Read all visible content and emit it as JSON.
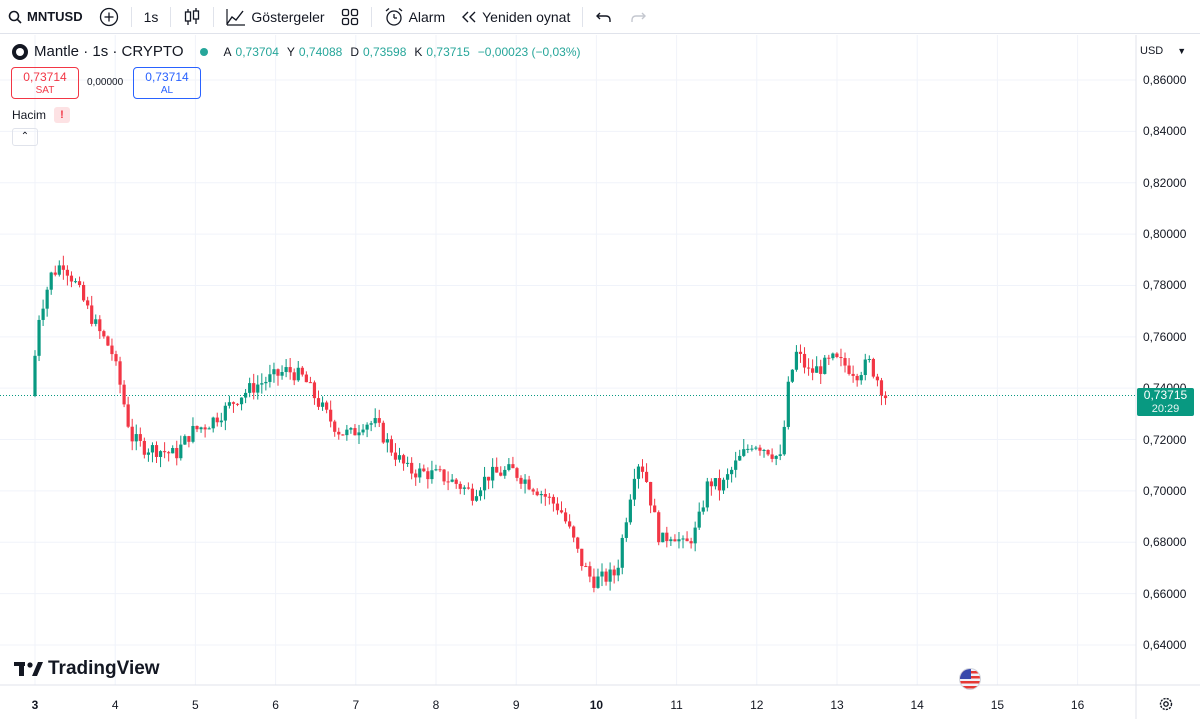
{
  "toolbar": {
    "symbol": "MNTUSD",
    "interval": "1s",
    "indicators": "Göstergeler",
    "alarm": "Alarm",
    "replay": "Yeniden oynat"
  },
  "legend": {
    "name": "Mantle · 1s · CRYPTO",
    "o_label": "A",
    "o": "0,73704",
    "h_label": "Y",
    "h": "0,74088",
    "l_label": "D",
    "l": "0,73598",
    "c_label": "K",
    "c": "0,73715",
    "change": "−0,00023 (−0,03%)"
  },
  "trade": {
    "sell_price": "0,73714",
    "sell_label": "SAT",
    "spread": "0,00000",
    "buy_price": "0,73714",
    "buy_label": "AL"
  },
  "volume": {
    "label": "Hacim",
    "warn": "!"
  },
  "currency": "USD",
  "last_price": {
    "value": "0,73715",
    "countdown": "20:29"
  },
  "brand": "TradingView",
  "colors": {
    "up": "#089981",
    "down": "#f23645",
    "grid": "#f0f3fa"
  },
  "chart_data": {
    "type": "candlestick",
    "x_ticks": [
      "3",
      "4",
      "5",
      "6",
      "7",
      "8",
      "9",
      "10",
      "11",
      "12",
      "13",
      "14",
      "15",
      "16"
    ],
    "y_ticks": [
      "0,86000",
      "0,84000",
      "0,82000",
      "0,80000",
      "0,78000",
      "0,76000",
      "0,74000",
      "0,72000",
      "0,70000",
      "0,68000",
      "0,66000",
      "0,64000"
    ],
    "ylim": [
      0.63,
      0.87
    ],
    "xlim": [
      3,
      16.5
    ],
    "last_price": 0.73715,
    "path": [
      [
        3.0,
        0.737
      ],
      [
        3.1,
        0.768
      ],
      [
        3.25,
        0.784
      ],
      [
        3.4,
        0.789
      ],
      [
        3.55,
        0.781
      ],
      [
        3.7,
        0.771
      ],
      [
        3.85,
        0.762
      ],
      [
        4.0,
        0.755
      ],
      [
        4.1,
        0.743
      ],
      [
        4.25,
        0.721
      ],
      [
        4.4,
        0.717
      ],
      [
        4.6,
        0.716
      ],
      [
        4.8,
        0.714
      ],
      [
        5.0,
        0.723
      ],
      [
        5.2,
        0.726
      ],
      [
        5.4,
        0.731
      ],
      [
        5.6,
        0.737
      ],
      [
        5.8,
        0.741
      ],
      [
        6.0,
        0.744
      ],
      [
        6.2,
        0.747
      ],
      [
        6.4,
        0.744
      ],
      [
        6.55,
        0.736
      ],
      [
        6.7,
        0.729
      ],
      [
        6.85,
        0.723
      ],
      [
        7.0,
        0.722
      ],
      [
        7.15,
        0.727
      ],
      [
        7.3,
        0.726
      ],
      [
        7.5,
        0.716
      ],
      [
        7.7,
        0.708
      ],
      [
        7.9,
        0.707
      ],
      [
        8.1,
        0.706
      ],
      [
        8.3,
        0.703
      ],
      [
        8.5,
        0.699
      ],
      [
        8.7,
        0.706
      ],
      [
        9.0,
        0.708
      ],
      [
        9.3,
        0.701
      ],
      [
        9.6,
        0.693
      ],
      [
        9.75,
        0.682
      ],
      [
        9.85,
        0.673
      ],
      [
        10.0,
        0.665
      ],
      [
        10.15,
        0.666
      ],
      [
        10.3,
        0.668
      ],
      [
        10.45,
        0.695
      ],
      [
        10.55,
        0.712
      ],
      [
        10.65,
        0.708
      ],
      [
        10.75,
        0.693
      ],
      [
        10.85,
        0.68
      ],
      [
        11.0,
        0.684
      ],
      [
        11.15,
        0.678
      ],
      [
        11.3,
        0.685
      ],
      [
        11.45,
        0.704
      ],
      [
        11.6,
        0.701
      ],
      [
        11.8,
        0.711
      ],
      [
        12.0,
        0.719
      ],
      [
        12.2,
        0.716
      ],
      [
        12.35,
        0.712
      ],
      [
        12.45,
        0.742
      ],
      [
        12.55,
        0.754
      ],
      [
        12.7,
        0.746
      ],
      [
        12.85,
        0.748
      ],
      [
        13.0,
        0.751
      ],
      [
        13.15,
        0.749
      ],
      [
        13.3,
        0.746
      ],
      [
        13.45,
        0.75
      ],
      [
        13.55,
        0.744
      ],
      [
        13.65,
        0.737
      ]
    ]
  }
}
